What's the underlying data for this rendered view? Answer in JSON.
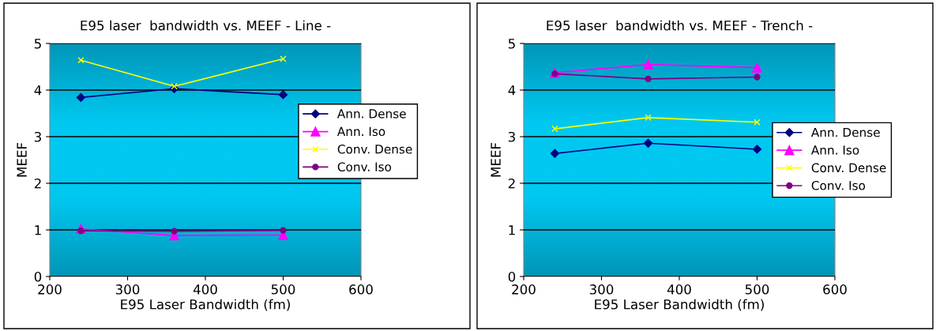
{
  "chart_data": [
    {
      "type": "line",
      "title": "E95 laser  bandwidth vs. MEEF - Line -",
      "xlabel": "E95 Laser Bandwidth (fm)",
      "ylabel": "MEEF",
      "x": [
        240,
        360,
        500
      ],
      "xlim": [
        200,
        600
      ],
      "xticks": [
        200,
        300,
        400,
        500,
        600
      ],
      "ylim": [
        0,
        5
      ],
      "yticks": [
        0,
        1,
        2,
        3,
        4,
        5
      ],
      "grid": "y",
      "legend": "right",
      "series": [
        {
          "name": "Ann. Dense",
          "color": "#000080",
          "marker": "diamond",
          "values": [
            3.84,
            4.03,
            3.9
          ]
        },
        {
          "name": "Ann. Iso",
          "color": "#ff00ff",
          "marker": "triangle",
          "values": [
            1.02,
            0.88,
            0.89
          ]
        },
        {
          "name": "Conv. Dense",
          "color": "#ffff00",
          "marker": "cross",
          "values": [
            4.64,
            4.08,
            4.67
          ]
        },
        {
          "name": "Conv. Iso",
          "color": "#800080",
          "marker": "circle",
          "values": [
            0.98,
            0.97,
            0.99
          ]
        }
      ]
    },
    {
      "type": "line",
      "title": "E95 laser  bandwidth vs. MEEF - Trench -",
      "xlabel": "E95 Laser Bandwidth (fm)",
      "ylabel": "MEEF",
      "x": [
        240,
        360,
        500
      ],
      "xlim": [
        200,
        600
      ],
      "xticks": [
        200,
        300,
        400,
        500,
        600
      ],
      "ylim": [
        0,
        5
      ],
      "yticks": [
        0,
        1,
        2,
        3,
        4,
        5
      ],
      "grid": "y",
      "legend": "right",
      "series": [
        {
          "name": "Ann. Dense",
          "color": "#000080",
          "marker": "diamond",
          "values": [
            2.64,
            2.86,
            2.73
          ]
        },
        {
          "name": "Ann. Iso",
          "color": "#ff00ff",
          "marker": "triangle",
          "values": [
            4.37,
            4.55,
            4.48
          ]
        },
        {
          "name": "Conv. Dense",
          "color": "#ffff00",
          "marker": "cross",
          "values": [
            3.17,
            3.41,
            3.31
          ]
        },
        {
          "name": "Conv. Iso",
          "color": "#800080",
          "marker": "circle",
          "values": [
            4.35,
            4.24,
            4.28
          ]
        }
      ]
    }
  ]
}
